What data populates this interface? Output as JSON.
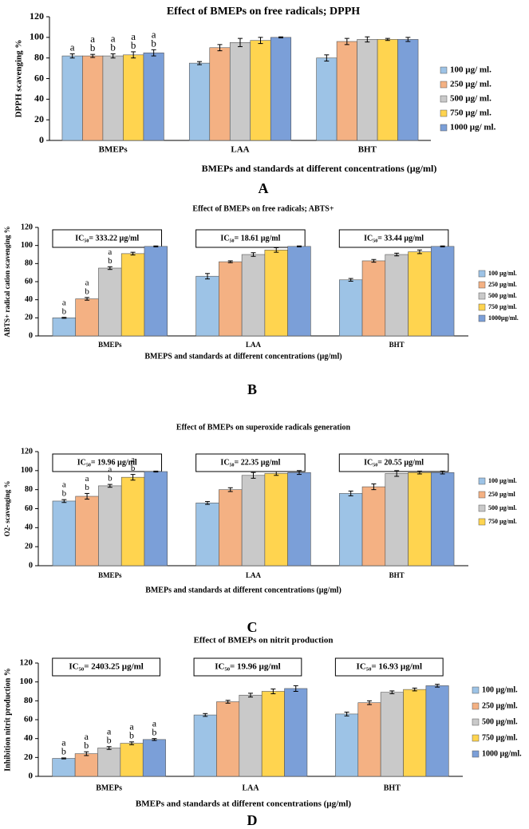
{
  "chart_data": [
    {
      "type": "bar",
      "title": "Effect of BMEPs on free radicals; DPPH",
      "y_label": "DPPH scavenging %",
      "x_label": "BMEPs and standards at different concentrations (µg/ml)",
      "panel": "A",
      "categories": [
        "BMEPs",
        "LAA",
        "BHT"
      ],
      "ylim": [
        0,
        120
      ],
      "yticks": [
        0,
        20,
        40,
        60,
        80,
        100,
        120
      ],
      "series": [
        {
          "name": "100 µg/ ml.",
          "color": "#9dc3e6",
          "values": [
            82,
            75,
            80
          ],
          "errors": [
            2,
            1.5,
            3
          ],
          "letters": [
            [
              "a"
            ],
            null,
            null
          ]
        },
        {
          "name": "250 µg/ ml.",
          "color": "#f4b183",
          "values": [
            82,
            90,
            96
          ],
          "errors": [
            1.5,
            3,
            3
          ],
          "letters": [
            [
              "a",
              "b"
            ],
            null,
            null
          ]
        },
        {
          "name": "500 µg/ ml.",
          "color": "#c9c9c9",
          "values": [
            82,
            95,
            98
          ],
          "errors": [
            2,
            4,
            2.5
          ],
          "letters": [
            [
              "a",
              "b"
            ],
            null,
            null
          ]
        },
        {
          "name": "750 µg/ ml.",
          "color": "#ffd44f",
          "values": [
            83,
            97,
            98
          ],
          "errors": [
            3,
            3,
            1
          ],
          "letters": [
            [
              "a",
              "b"
            ],
            null,
            null
          ]
        },
        {
          "name": "1000 µg/ ml.",
          "color": "#7b9fd8",
          "values": [
            85,
            100,
            98
          ],
          "errors": [
            3,
            0.5,
            2
          ],
          "letters": [
            [
              "a",
              "b"
            ],
            null,
            null
          ]
        }
      ]
    },
    {
      "type": "bar",
      "title": "Effect of BMEPs on free radicals; ABTS+",
      "y_label": "ABTS+ radical cation scavenging %",
      "x_label": "BMEPS and standards at different concentrations (µg/ml)",
      "panel": "B",
      "ic50": [
        "IC₅₀= 333.22 µg/ml",
        "IC₅₀= 18.61 µg/ml",
        "IC₅₀= 33.44 µg/ml"
      ],
      "categories": [
        "BMEPs",
        "LAA",
        "BHT"
      ],
      "ylim": [
        0,
        120
      ],
      "yticks": [
        0,
        20,
        40,
        60,
        80,
        100,
        120
      ],
      "series": [
        {
          "name": "100 µg/ml.",
          "color": "#9dc3e6",
          "values": [
            20,
            66,
            62
          ],
          "errors": [
            0.5,
            3,
            1.5
          ],
          "letters": [
            [
              "a",
              "b"
            ],
            null,
            null
          ]
        },
        {
          "name": "250 µg/ml.",
          "color": "#f4b183",
          "values": [
            41,
            82,
            83
          ],
          "errors": [
            1.5,
            1,
            1.5
          ],
          "letters": [
            [
              "a",
              "b"
            ],
            null,
            null
          ]
        },
        {
          "name": "500 µg/ml.",
          "color": "#c9c9c9",
          "values": [
            75,
            90,
            90
          ],
          "errors": [
            1.5,
            2,
            1.5
          ],
          "letters": [
            [
              "a",
              "b"
            ],
            null,
            null
          ]
        },
        {
          "name": "750 µg/ml.",
          "color": "#ffd44f",
          "values": [
            91,
            95,
            93
          ],
          "errors": [
            1.5,
            2.5,
            2
          ],
          "letters": [
            null,
            null,
            null
          ]
        },
        {
          "name": "1000µg/ml.",
          "color": "#7b9fd8",
          "values": [
            99,
            99,
            99
          ],
          "errors": [
            0.5,
            0.5,
            0.5
          ],
          "letters": [
            null,
            null,
            null
          ]
        }
      ]
    },
    {
      "type": "bar",
      "title": "Effect of BMEPs on superoxide radicals generation",
      "y_label": "O2- scavenging %",
      "x_label": "BMEPs and standards at different concentrations (µg/ml)",
      "panel": "C",
      "ic50": [
        "IC₅₀= 19.96 µg/ml",
        "IC₅₀= 22.35 µg/ml",
        "IC₅₀= 20.55 µg/ml"
      ],
      "categories": [
        "BMEPs",
        "LAA",
        "BHT"
      ],
      "ylim": [
        0,
        120
      ],
      "yticks": [
        0,
        20,
        40,
        60,
        80,
        100,
        120
      ],
      "series": [
        {
          "name": "100 µg/ml.",
          "color": "#9dc3e6",
          "values": [
            68,
            66,
            76
          ],
          "errors": [
            1.5,
            1.5,
            2.5
          ],
          "letters": [
            [
              "a",
              "b"
            ],
            null,
            null
          ]
        },
        {
          "name": "250 µg/ml",
          "color": "#f4b183",
          "values": [
            73,
            80,
            83
          ],
          "errors": [
            3,
            2,
            3
          ],
          "letters": [
            [
              "a",
              "b"
            ],
            null,
            null
          ]
        },
        {
          "name": "500 µg/ml.",
          "color": "#c9c9c9",
          "values": [
            84,
            95,
            97
          ],
          "errors": [
            1.5,
            3,
            3
          ],
          "letters": [
            [
              "a",
              "b"
            ],
            null,
            null
          ]
        },
        {
          "name": "750 µg/ml.",
          "color": "#ffd44f",
          "values": [
            93,
            97,
            98
          ],
          "errors": [
            3,
            2,
            1.5
          ],
          "letters": [
            [
              "a",
              "b"
            ],
            null,
            null
          ]
        },
        {
          "name": null,
          "color": "#7b9fd8",
          "values": [
            99,
            98,
            98
          ],
          "errors": [
            0.5,
            2,
            1.5
          ],
          "letters": [
            null,
            null,
            null
          ]
        }
      ]
    },
    {
      "type": "bar",
      "title": "Effect of BMEPs on nitrit production",
      "y_label": "Inhibition nitrit production %",
      "x_label": "BMEPs  and standards at different concentrations (µg/ml)",
      "panel": "D",
      "ic50": [
        "IC₅₀= 2403.25 µg/ml",
        "IC₅₀= 19.96 µg/ml",
        "IC₅₀= 16.93 µg/ml"
      ],
      "categories": [
        "BMEPs",
        "LAA",
        "BHT"
      ],
      "ylim": [
        0,
        120
      ],
      "yticks": [
        0,
        20,
        40,
        60,
        80,
        100,
        120
      ],
      "series": [
        {
          "name": "100 µg/ml.",
          "color": "#9dc3e6",
          "values": [
            19,
            65,
            66
          ],
          "errors": [
            0.5,
            1.5,
            2
          ],
          "letters": [
            [
              "a",
              "b"
            ],
            null,
            null
          ]
        },
        {
          "name": "250 µg/ml.",
          "color": "#f4b183",
          "values": [
            24,
            79,
            78
          ],
          "errors": [
            2,
            1.5,
            2
          ],
          "letters": [
            [
              "a",
              "b"
            ],
            null,
            null
          ]
        },
        {
          "name": "500 µg/ml.",
          "color": "#c9c9c9",
          "values": [
            30,
            86,
            89
          ],
          "errors": [
            1.5,
            2,
            1.5
          ],
          "letters": [
            [
              "a",
              "b"
            ],
            null,
            null
          ]
        },
        {
          "name": "750 µg/ml.",
          "color": "#ffd44f",
          "values": [
            35,
            90,
            92
          ],
          "errors": [
            1.5,
            2.5,
            1.5
          ],
          "letters": [
            [
              "a",
              "b"
            ],
            null,
            null
          ]
        },
        {
          "name": "1000 µg/ml.",
          "color": "#7b9fd8",
          "values": [
            39,
            93,
            96
          ],
          "errors": [
            1,
            3,
            1.5
          ],
          "letters": [
            [
              "a",
              "b"
            ],
            null,
            null
          ]
        }
      ]
    }
  ]
}
